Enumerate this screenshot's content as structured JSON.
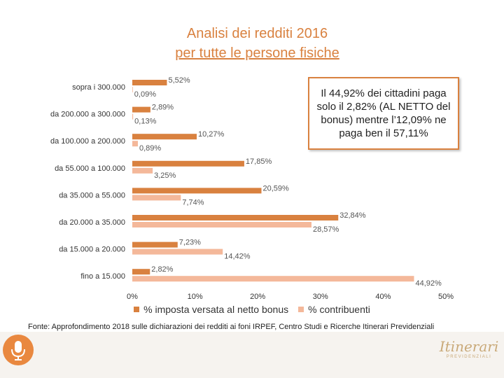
{
  "title": {
    "line1": "Analisi dei redditi 2016",
    "line2": "per tutte le persone fisiche"
  },
  "colors": {
    "accent": "#d9813f",
    "series_versata": "#d9813f",
    "series_contribuenti": "#f4b89a"
  },
  "chart_data": {
    "type": "bar",
    "orientation": "horizontal",
    "categories": [
      "sopra i 300.000",
      "da 200.000 a 300.000",
      "da 100.000 a 200.000",
      "da 55.000 a 100.000",
      "da 35.000 a 55.000",
      "da 20.000 a 35.000",
      "da 15.000 a 20.000",
      "fino a 15.000"
    ],
    "series": [
      {
        "name": "% imposta versata al netto bonus",
        "values": [
          5.52,
          2.89,
          10.27,
          17.85,
          20.59,
          32.84,
          7.23,
          2.82
        ],
        "labels": [
          "5,52%",
          "2,89%",
          "10,27%",
          "17,85%",
          "20,59%",
          "32,84%",
          "7,23%",
          "2,82%"
        ]
      },
      {
        "name": "% contribuenti",
        "values": [
          0.09,
          0.13,
          0.89,
          3.25,
          7.74,
          28.57,
          14.42,
          44.92
        ],
        "labels": [
          "0,09%",
          "0,13%",
          "0,89%",
          "3,25%",
          "7,74%",
          "28,57%",
          "14,42%",
          "44,92%"
        ]
      }
    ],
    "xlim": [
      0,
      50
    ],
    "xticks": [
      0,
      10,
      20,
      30,
      40,
      50
    ],
    "xtick_labels": [
      "0%",
      "10%",
      "20%",
      "30%",
      "40%",
      "50%"
    ],
    "grid": false,
    "legend_position": "bottom"
  },
  "callout": {
    "text": "Il 44,92% dei cittadini paga solo il 2,82% (AL NETTO del bonus) mentre l’12,09% ne paga ben il 57,11%"
  },
  "source": "Fonte: Approfondimento 2018 sulle dichiarazioni dei redditi ai foni IRPEF, Centro Studi e Ricerche Itinerari Previdenziali",
  "footer": {
    "icon": "microphone-icon",
    "logo_script": "Itinerari",
    "logo_caps": "PREVIDENZIALI"
  }
}
